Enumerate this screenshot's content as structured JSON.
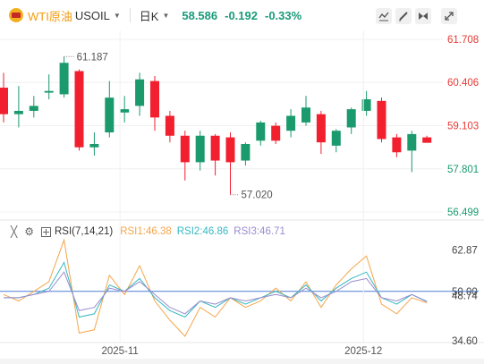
{
  "header": {
    "symbol_name": "WTI原油",
    "symbol_code": "USOIL",
    "interval": "日K",
    "last_price": "58.586",
    "change": "-0.192",
    "change_pct": "-0.33%",
    "icons": [
      "indicator-icon",
      "draw-icon",
      "compare-icon",
      "fullscreen-icon"
    ]
  },
  "rsi_legend": {
    "name": "RSI(7,14,21)",
    "rsi1": "RSI1:46.38",
    "rsi2": "RSI2:46.86",
    "rsi3": "RSI3:46.71"
  },
  "colors": {
    "up": "#1b9a6d",
    "down": "#f21f2e",
    "rsi1": "#f5a54b",
    "rsi2": "#36b8c2",
    "rsi3": "#9b8bd0",
    "mid_line": "#4a7fd4",
    "price_text": "#1a9a7a"
  },
  "chart_data": [
    {
      "type": "candlestick",
      "y_axis_labels": [
        "61.708",
        "60.406",
        "59.103",
        "57.801",
        "56.499"
      ],
      "y_axis_values": [
        61.708,
        60.406,
        59.103,
        57.801,
        56.499
      ],
      "ylim": [
        56.499,
        61.708
      ],
      "high_annotation": {
        "label": "61.187",
        "value": 61.187,
        "index": 4
      },
      "low_annotation": {
        "label": "57.020",
        "value": 57.02,
        "index": 15
      },
      "candles": [
        {
          "o": 60.25,
          "h": 60.7,
          "l": 59.2,
          "c": 59.45
        },
        {
          "o": 59.45,
          "h": 60.3,
          "l": 59.05,
          "c": 59.55
        },
        {
          "o": 59.55,
          "h": 60.0,
          "l": 59.35,
          "c": 59.7
        },
        {
          "o": 60.1,
          "h": 60.65,
          "l": 59.9,
          "c": 60.15
        },
        {
          "o": 60.05,
          "h": 61.187,
          "l": 59.95,
          "c": 61.0
        },
        {
          "o": 60.75,
          "h": 60.8,
          "l": 58.35,
          "c": 58.45
        },
        {
          "o": 58.45,
          "h": 58.9,
          "l": 58.2,
          "c": 58.55
        },
        {
          "o": 58.9,
          "h": 60.45,
          "l": 58.75,
          "c": 59.95
        },
        {
          "o": 59.5,
          "h": 60.0,
          "l": 59.2,
          "c": 59.6
        },
        {
          "o": 59.7,
          "h": 60.7,
          "l": 59.4,
          "c": 60.5
        },
        {
          "o": 60.45,
          "h": 60.6,
          "l": 58.95,
          "c": 59.35
        },
        {
          "o": 59.4,
          "h": 59.55,
          "l": 58.6,
          "c": 58.8
        },
        {
          "o": 58.8,
          "h": 58.95,
          "l": 57.45,
          "c": 58.0
        },
        {
          "o": 58.0,
          "h": 58.95,
          "l": 57.75,
          "c": 58.8
        },
        {
          "o": 58.8,
          "h": 58.85,
          "l": 57.6,
          "c": 58.05
        },
        {
          "o": 58.75,
          "h": 58.9,
          "l": 57.02,
          "c": 58.0
        },
        {
          "o": 58.05,
          "h": 58.6,
          "l": 57.9,
          "c": 58.55
        },
        {
          "o": 58.65,
          "h": 59.25,
          "l": 58.5,
          "c": 59.2
        },
        {
          "o": 59.1,
          "h": 59.2,
          "l": 58.55,
          "c": 58.65
        },
        {
          "o": 58.95,
          "h": 59.6,
          "l": 58.75,
          "c": 59.4
        },
        {
          "o": 59.2,
          "h": 60.0,
          "l": 59.1,
          "c": 59.65
        },
        {
          "o": 59.45,
          "h": 59.55,
          "l": 58.25,
          "c": 58.6
        },
        {
          "o": 58.5,
          "h": 59.0,
          "l": 58.3,
          "c": 58.95
        },
        {
          "o": 59.05,
          "h": 59.65,
          "l": 58.85,
          "c": 59.6
        },
        {
          "o": 59.55,
          "h": 60.15,
          "l": 59.4,
          "c": 59.9
        },
        {
          "o": 59.85,
          "h": 59.95,
          "l": 58.6,
          "c": 58.7
        },
        {
          "o": 58.75,
          "h": 58.85,
          "l": 58.15,
          "c": 58.3
        },
        {
          "o": 58.35,
          "h": 58.95,
          "l": 57.7,
          "c": 58.85
        },
        {
          "o": 58.75,
          "h": 58.8,
          "l": 58.6,
          "c": 58.586
        }
      ]
    },
    {
      "type": "line",
      "name": "RSI(7,14,21)",
      "y_axis_labels": [
        "62.87",
        "50.00",
        "48.74",
        "34.60"
      ],
      "y_axis_values": [
        62.87,
        50.0,
        48.74,
        34.6
      ],
      "ylim": [
        34.6,
        66.1
      ],
      "mid_line": 50.0,
      "x_axis_labels": [
        {
          "label": "2025-11",
          "index": 7.7
        },
        {
          "label": "2025-12",
          "index": 23.8
        }
      ],
      "series": [
        {
          "name": "RSI1",
          "values": [
            49,
            47,
            50,
            53,
            66,
            37,
            38,
            55,
            49,
            58,
            47,
            41,
            36,
            45,
            42,
            48,
            45,
            47,
            51,
            47,
            53,
            45,
            52,
            57,
            61,
            46,
            43,
            48,
            46.38
          ]
        },
        {
          "name": "RSI2",
          "values": [
            48,
            48,
            49,
            51,
            59,
            42,
            43,
            52,
            50,
            54,
            48,
            44,
            42,
            47,
            45,
            48,
            46,
            48,
            50,
            48,
            52,
            47,
            51,
            54,
            56,
            48,
            46,
            49,
            46.86
          ]
        },
        {
          "name": "RSI3",
          "values": [
            48,
            48,
            49,
            50,
            56,
            44,
            45,
            51,
            50,
            53,
            49,
            45,
            43,
            47,
            46,
            48,
            47,
            48,
            49,
            48,
            51,
            48,
            50,
            53,
            54,
            48,
            47,
            49,
            46.71
          ]
        }
      ]
    }
  ]
}
